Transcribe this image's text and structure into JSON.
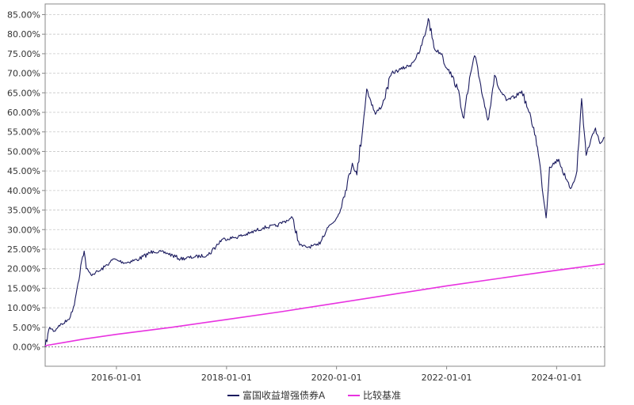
{
  "chart_data": {
    "type": "line",
    "title": "",
    "xlabel": "",
    "ylabel": "",
    "y_unit": "%",
    "ylim": [
      -5,
      85
    ],
    "xlim": [
      "2014-09-15",
      "2024-11-15"
    ],
    "grid": "horizontal dashed",
    "legend_position": "bottom",
    "y_ticks": [
      "0.00%",
      "5.00%",
      "10.00%",
      "15.00%",
      "20.00%",
      "25.00%",
      "30.00%",
      "35.00%",
      "40.00%",
      "45.00%",
      "50.00%",
      "55.00%",
      "60.00%",
      "65.00%",
      "70.00%",
      "75.00%",
      "80.00%",
      "85.00%"
    ],
    "x_ticks": [
      "2016-01-01",
      "2018-01-01",
      "2020-01-01",
      "2022-01-01",
      "2024-01-01"
    ],
    "series": [
      {
        "name": "富国收益增强债券A",
        "color": "#1a1a5e",
        "x": [
          "2014-09-15",
          "2014-10-15",
          "2014-11-15",
          "2014-12-15",
          "2015-01-15",
          "2015-02-15",
          "2015-03-15",
          "2015-04-15",
          "2015-05-15",
          "2015-06-01",
          "2015-06-15",
          "2015-07-15",
          "2015-08-15",
          "2015-09-15",
          "2015-10-15",
          "2015-11-15",
          "2015-12-15",
          "2016-01-15",
          "2016-03-01",
          "2016-06-01",
          "2016-09-01",
          "2016-12-01",
          "2017-03-01",
          "2017-06-01",
          "2017-09-01",
          "2017-12-01",
          "2018-03-01",
          "2018-06-01",
          "2018-09-01",
          "2018-12-01",
          "2019-01-15",
          "2019-03-15",
          "2019-05-01",
          "2019-06-15",
          "2019-09-01",
          "2019-11-01",
          "2019-12-15",
          "2020-01-15",
          "2020-03-01",
          "2020-04-15",
          "2020-05-15",
          "2020-07-01",
          "2020-07-20",
          "2020-08-15",
          "2020-09-15",
          "2020-11-01",
          "2021-01-01",
          "2021-03-01",
          "2021-05-01",
          "2021-07-01",
          "2021-08-15",
          "2021-09-01",
          "2021-10-15",
          "2021-12-01",
          "2021-12-20",
          "2022-01-15",
          "2022-03-15",
          "2022-04-25",
          "2022-06-15",
          "2022-07-05",
          "2022-08-15",
          "2022-10-01",
          "2022-11-15",
          "2022-12-15",
          "2023-02-01",
          "2023-04-01",
          "2023-05-15",
          "2023-07-01",
          "2023-08-15",
          "2023-09-20",
          "2023-10-23",
          "2023-11-15",
          "2024-01-15",
          "2024-03-01",
          "2024-04-01",
          "2024-04-20",
          "2024-05-15",
          "2024-06-15",
          "2024-07-15",
          "2024-08-15",
          "2024-09-15",
          "2024-10-15",
          "2024-11-15"
        ],
        "values": [
          0,
          5,
          4,
          5.5,
          6,
          7,
          9,
          15,
          22,
          24.5,
          20,
          18.5,
          19,
          19.5,
          20.5,
          21.5,
          22.5,
          22,
          21.5,
          22.5,
          24.5,
          24,
          22.5,
          23,
          23.5,
          27.5,
          28,
          29,
          30.5,
          31,
          32,
          33,
          26,
          25.5,
          26,
          30.5,
          32,
          34,
          40,
          47,
          44,
          59,
          66,
          63,
          59.5,
          62,
          70,
          71,
          72,
          75,
          80.5,
          84,
          76,
          75,
          72,
          71,
          66,
          58.5,
          71,
          74.5,
          67,
          58,
          69.5,
          66,
          63,
          64,
          65.5,
          60,
          54,
          44,
          33,
          46,
          48,
          43,
          40.5,
          42,
          45,
          63.5,
          49,
          53,
          56,
          52,
          53.5
        ]
      },
      {
        "name": "比较基准",
        "color": "#e832e0",
        "x": [
          "2014-09-15",
          "2015-01-15",
          "2015-06-01",
          "2016-01-01",
          "2017-01-01",
          "2018-01-01",
          "2019-01-01",
          "2020-01-01",
          "2021-01-01",
          "2022-01-01",
          "2023-01-01",
          "2024-01-01",
          "2024-11-15"
        ],
        "values": [
          0.3,
          1.1,
          2.0,
          3.2,
          5.0,
          7.0,
          9.0,
          11.2,
          13.4,
          15.6,
          17.6,
          19.6,
          21.2
        ]
      }
    ]
  }
}
